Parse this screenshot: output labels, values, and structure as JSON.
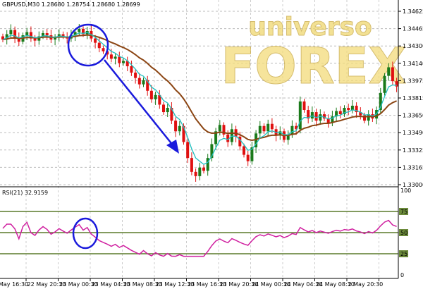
{
  "chart_data": [
    {
      "type": "candlestick",
      "symbol_header": "GBPUSD,M30  1.28680 1.28754 1.28680 1.28699",
      "ylim": [
        1.33,
        1.34625
      ],
      "y_ticks": [
        "1.34625",
        "1.34465",
        "1.34300",
        "1.34140",
        "1.33975",
        "1.33815",
        "1.33650",
        "1.33490",
        "1.33325",
        "1.33165",
        "1.33000"
      ],
      "x_ticks": [
        "May 16:30",
        "22 May 20:30",
        "23 May 00:30",
        "23 May 04:30",
        "23 May 08:30",
        "23 May 12:30",
        "23 May 16:30",
        "23 May 20:30",
        "24 May 00:30",
        "24 May 04:30",
        "24 May 08:30",
        "2 May 20:30"
      ],
      "closes": [
        1.3436,
        1.3441,
        1.3445,
        1.3438,
        1.3434,
        1.344,
        1.3443,
        1.3437,
        1.3435,
        1.3439,
        1.3442,
        1.344,
        1.3436,
        1.3438,
        1.3441,
        1.3439,
        1.3437,
        1.344,
        1.3443,
        1.3446,
        1.3441,
        1.3444,
        1.3437,
        1.3433,
        1.3428,
        1.3425,
        1.3422,
        1.3418,
        1.342,
        1.3414,
        1.3416,
        1.3411,
        1.3405,
        1.34,
        1.3394,
        1.3398,
        1.3388,
        1.338,
        1.3384,
        1.3375,
        1.3368,
        1.3372,
        1.336,
        1.335,
        1.3355,
        1.334,
        1.3325,
        1.3312,
        1.3308,
        1.3316,
        1.3313,
        1.3325,
        1.3338,
        1.335,
        1.3356,
        1.3347,
        1.334,
        1.3352,
        1.3345,
        1.3336,
        1.3328,
        1.3322,
        1.3335,
        1.3348,
        1.3355,
        1.335,
        1.3357,
        1.3352,
        1.3346,
        1.335,
        1.3342,
        1.3347,
        1.3355,
        1.3352,
        1.3378,
        1.337,
        1.3362,
        1.3368,
        1.336,
        1.3366,
        1.3362,
        1.3358,
        1.3364,
        1.3369,
        1.3366,
        1.3372,
        1.337,
        1.3374,
        1.3368,
        1.3365,
        1.336,
        1.3366,
        1.3362,
        1.337,
        1.3386,
        1.3402,
        1.341,
        1.3397,
        1.3392
      ],
      "colors": {
        "bull": "#1a7a1a",
        "bear": "#e01010",
        "fast_ma": "#20c0c0",
        "slow_ma": "#8b4513",
        "annotation": "#1a1adc"
      },
      "watermark": "universo FOREX"
    },
    {
      "type": "line",
      "label": "RSI(21) 32.9159",
      "ylim": [
        0,
        100
      ],
      "levels": [
        75,
        50,
        25
      ],
      "y_ticks": [
        "100",
        "75",
        "50",
        "25",
        "0"
      ],
      "color": "#d020a0"
    }
  ]
}
